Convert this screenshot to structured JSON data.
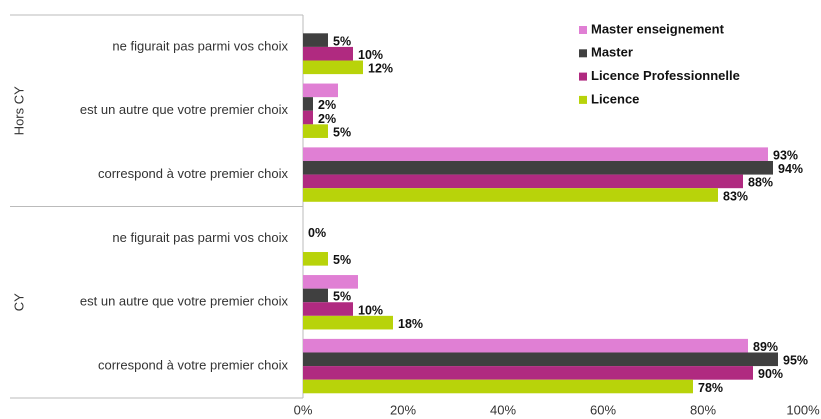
{
  "chart_data": {
    "type": "bar",
    "orientation": "horizontal",
    "group_labels": [
      "Hors CY",
      "CY"
    ],
    "categories": [
      "ne figurait pas parmi vos choix",
      "est un autre que votre premier choix",
      "correspond à votre premier choix",
      "ne figurait pas parmi vos choix",
      "est un autre que votre premier choix",
      "correspond à votre premier choix"
    ],
    "series": [
      {
        "name": "Master enseignement",
        "color": "#e07fd4",
        "values": [
          null,
          7,
          93,
          null,
          11,
          89
        ],
        "value_labels": [
          null,
          null,
          "93%",
          null,
          null,
          "89%"
        ]
      },
      {
        "name": "Master",
        "color": "#404040",
        "values": [
          5,
          2,
          94,
          0,
          5,
          95
        ],
        "value_labels": [
          "5%",
          "2%",
          "94%",
          "0%",
          "5%",
          "95%"
        ]
      },
      {
        "name": "Licence Professionnelle",
        "color": "#b02a80",
        "values": [
          10,
          2,
          88,
          null,
          10,
          90
        ],
        "value_labels": [
          "10%",
          "2%",
          "88%",
          null,
          "10%",
          "90%"
        ]
      },
      {
        "name": "Licence",
        "color": "#b8d30a",
        "values": [
          12,
          5,
          83,
          5,
          18,
          78
        ],
        "value_labels": [
          "12%",
          "5%",
          "83%",
          "5%",
          "18%",
          "78%"
        ]
      }
    ],
    "xlim": [
      0,
      100
    ],
    "xticks": [
      {
        "value": 0,
        "label": "0%"
      },
      {
        "value": 20,
        "label": "20%"
      },
      {
        "value": 40,
        "label": "40%"
      },
      {
        "value": 60,
        "label": "60%"
      },
      {
        "value": 80,
        "label": "80%"
      },
      {
        "value": 100,
        "label": "100%"
      }
    ],
    "legend": "top-right"
  }
}
